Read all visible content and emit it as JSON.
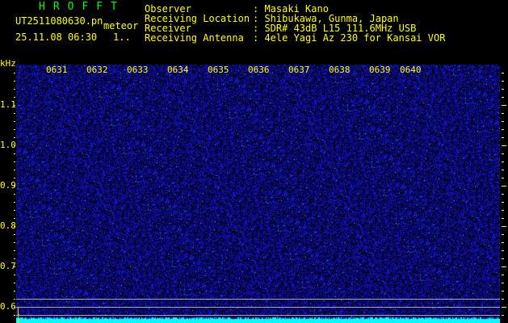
{
  "app_title": "HROFFT",
  "file_name": "UT2511080630.pn",
  "mode": "meteor",
  "datetime": "25.11.08 06:30",
  "extra": "1..",
  "info": [
    {
      "label": "Observer",
      "value": ": Masaki Kano"
    },
    {
      "label": "Receiving Location",
      "value": ": Shibukawa, Gunma, Japan"
    },
    {
      "label": "Receiver",
      "value": ": SDR# 43dB L15 111.6MHz USB"
    },
    {
      "label": "Receiving Antenna",
      "value": ": 4ele Yagi Az 230 for Kansai VOR"
    }
  ],
  "y_unit": "kHz",
  "y_labels": [
    "1.1",
    "1.0",
    "0.9",
    "0.8",
    "0.7",
    "0.6"
  ],
  "time_labels": [
    "0631",
    "0632",
    "0633",
    "0634",
    "0635",
    "0636",
    "0637",
    "0638",
    "0639",
    "0640"
  ],
  "colors": {
    "text": "#ffff00",
    "title": "#00ff00",
    "signal": "#0000ff",
    "strip": "#00ffff",
    "guides": "#a8a8a8"
  }
}
